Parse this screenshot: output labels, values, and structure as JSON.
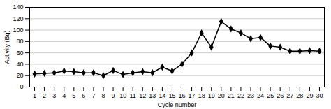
{
  "chart_data": {
    "type": "line",
    "x": [
      1,
      2,
      3,
      4,
      5,
      6,
      7,
      8,
      9,
      10,
      11,
      12,
      13,
      14,
      15,
      16,
      17,
      18,
      19,
      20,
      21,
      22,
      23,
      24,
      25,
      26,
      27,
      28,
      29,
      30
    ],
    "values": [
      23,
      24,
      25,
      28,
      27,
      25,
      25,
      20,
      29,
      22,
      25,
      27,
      25,
      35,
      28,
      40,
      60,
      95,
      70,
      115,
      102,
      95,
      85,
      87,
      72,
      70,
      63,
      63,
      64,
      63
    ],
    "xlabel": "Cycle number",
    "ylabel": "Activity (Bq)",
    "xlim": [
      0.5,
      30.5
    ],
    "xticks": [
      1,
      2,
      3,
      4,
      5,
      6,
      7,
      8,
      9,
      10,
      11,
      12,
      13,
      14,
      15,
      16,
      17,
      18,
      19,
      20,
      21,
      22,
      23,
      24,
      25,
      26,
      27,
      28,
      29,
      30
    ],
    "ylim": [
      0,
      140
    ],
    "yticks": [
      0,
      20,
      40,
      60,
      80,
      100,
      120,
      140
    ],
    "color": "#000000",
    "marker": "diamond",
    "grid": true
  }
}
